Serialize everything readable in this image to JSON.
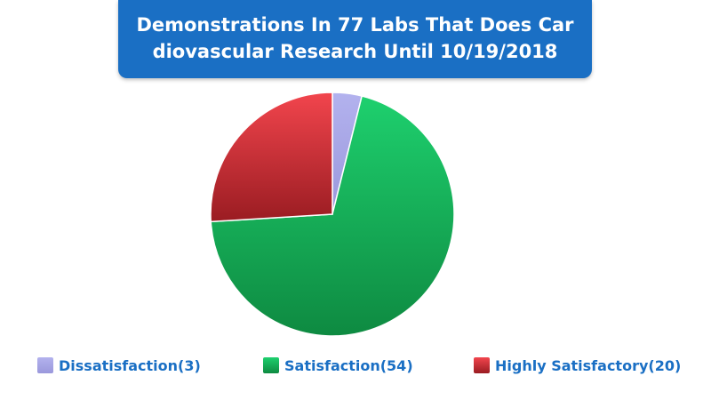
{
  "chart_data": {
    "type": "pie",
    "title": "Demonstrations In 77 Labs That Does Cardiovascular Research Until 10/19/2018",
    "slices": [
      {
        "label": "Dissatisfaction",
        "value": 3,
        "color_top": "#b3b2ee",
        "color_bottom": "#9a98dc",
        "legend_text": "Dissatisfaction(3)"
      },
      {
        "label": "Satisfaction",
        "value": 54,
        "color_top": "#1ed06e",
        "color_bottom": "#0e8a41",
        "legend_text": "Satisfaction(54)"
      },
      {
        "label": "Highly Satisfactory",
        "value": 20,
        "color_top": "#f2454d",
        "color_bottom": "#9a1c22",
        "legend_text": "Highly Satisfactory(20)"
      }
    ],
    "legend_position": "bottom",
    "start_angle": "top",
    "direction": "clockwise"
  }
}
